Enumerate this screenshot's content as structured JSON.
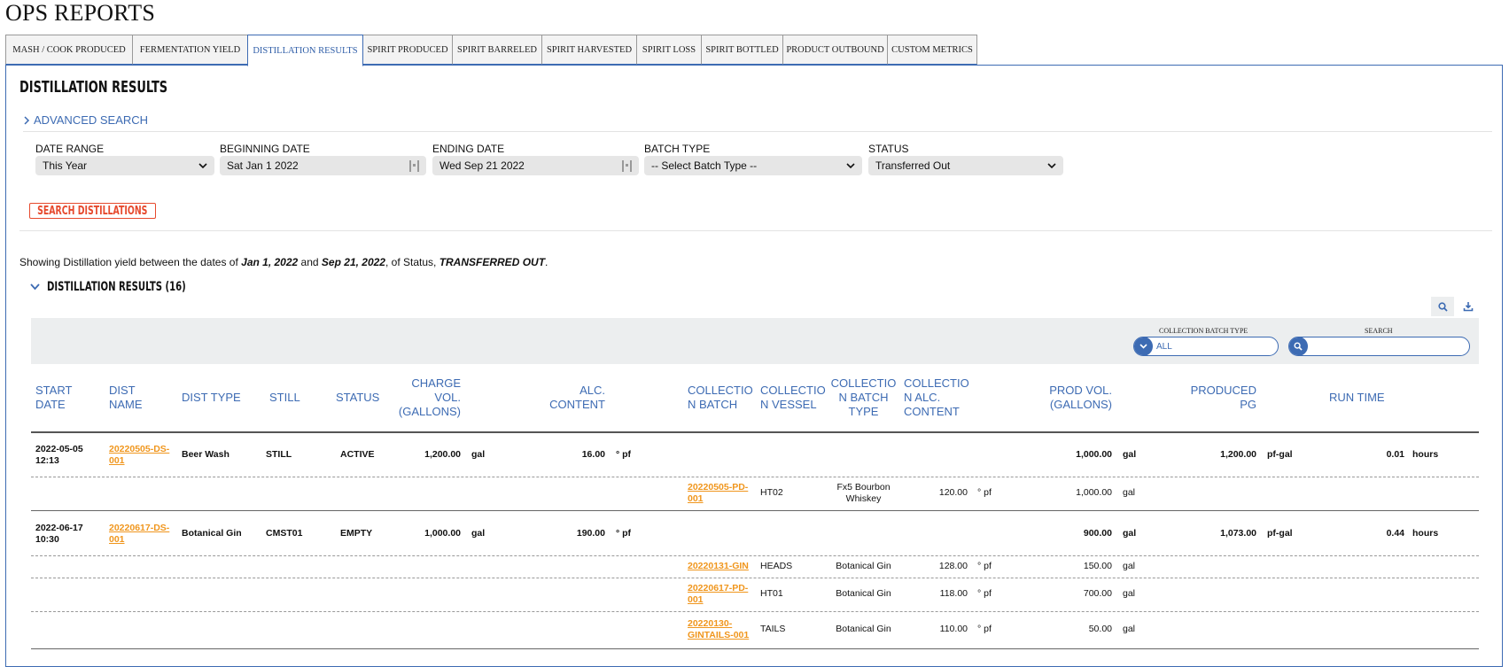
{
  "page_title": "OPS REPORTS",
  "tabs": [
    {
      "label": "MASH / COOK PRODUCED",
      "active": false
    },
    {
      "label": "FERMENTATION YIELD",
      "active": false
    },
    {
      "label": "DISTILLATION RESULTS",
      "active": true
    },
    {
      "label": "SPIRIT PRODUCED",
      "active": false
    },
    {
      "label": "SPIRIT BARRELED",
      "active": false
    },
    {
      "label": "SPIRIT HARVESTED",
      "active": false
    },
    {
      "label": "SPIRIT LOSS",
      "active": false
    },
    {
      "label": "SPIRIT BOTTLED",
      "active": false
    },
    {
      "label": "PRODUCT OUTBOUND",
      "active": false
    },
    {
      "label": "CUSTOM METRICS",
      "active": false
    }
  ],
  "section_title": "DISTILLATION RESULTS",
  "advanced_search": "ADVANCED SEARCH",
  "filters": {
    "date_range": {
      "label": "DATE RANGE",
      "value": "This Year"
    },
    "beginning_date": {
      "label": "BEGINNING DATE",
      "value": "Sat Jan 1 2022"
    },
    "ending_date": {
      "label": "ENDING DATE",
      "value": "Wed Sep 21 2022"
    },
    "batch_type": {
      "label": "BATCH TYPE",
      "value": "-- Select Batch Type --"
    },
    "status": {
      "label": "STATUS",
      "value": "Transferred Out"
    }
  },
  "search_button": "SEARCH DISTILLATIONS",
  "summary": {
    "prefix": "Showing Distillation yield between the dates of ",
    "start": "Jan 1, 2022",
    "and": " and ",
    "end": "Sep 21, 2022",
    "mid": ", of Status, ",
    "status": "TRANSFERRED OUT",
    "suffix": "."
  },
  "results_title": "DISTILLATION RESULTS (16)",
  "table_filters": {
    "collection_batch_type_label": "COLLECTION BATCH TYPE",
    "collection_batch_type_value": "ALL",
    "search_label": "SEARCH",
    "search_value": ""
  },
  "columns": {
    "start_date": [
      "START",
      "DATE"
    ],
    "dist_name": [
      "DIST",
      "NAME"
    ],
    "dist_type": [
      "DIST TYPE"
    ],
    "still": [
      "STILL"
    ],
    "status": [
      "STATUS"
    ],
    "charge_vol": [
      "CHARGE",
      "VOL.",
      "(GALLONS)"
    ],
    "alc_content": [
      "ALC.",
      "CONTENT"
    ],
    "collection_batch": [
      "COLLECTIO",
      "N BATCH"
    ],
    "collection_vessel": [
      "COLLECTIO",
      "N VESSEL"
    ],
    "collection_batch_type": [
      "COLLECTIO",
      "N BATCH",
      "TYPE"
    ],
    "collection_alc": [
      "COLLECTIO",
      "N ALC.",
      "CONTENT"
    ],
    "prod_vol": [
      "PROD VOL.",
      "(GALLONS)"
    ],
    "produced_pg": [
      "PRODUCED",
      "PG"
    ],
    "run_time": [
      "RUN TIME"
    ]
  },
  "rows": [
    {
      "start_date": [
        "2022-05-05",
        "12:13"
      ],
      "dist_name": [
        "20220505-DS-",
        "001"
      ],
      "dist_type": "Beer Wash",
      "still": "STILL",
      "status": "ACTIVE",
      "charge_vol": "1,200.00",
      "charge_unit": "gal",
      "alc": "16.00",
      "alc_unit": "° pf",
      "prod_vol": "1,000.00",
      "prod_unit": "gal",
      "pg": "1,200.00",
      "pg_unit": "pf-gal",
      "run_time": "0.01",
      "run_unit": "hours",
      "collections": [
        {
          "batch": [
            "20220505-PD-",
            "001"
          ],
          "vessel": "HT02",
          "type": [
            "Fx5 Bourbon",
            "Whiskey"
          ],
          "alc": "120.00",
          "alc_unit": "° pf",
          "vol": "1,000.00",
          "vol_unit": "gal"
        }
      ]
    },
    {
      "start_date": [
        "2022-06-17",
        "10:30"
      ],
      "dist_name": [
        "20220617-DS-",
        "001"
      ],
      "dist_type": "Botanical Gin",
      "still": "CMST01",
      "status": "EMPTY",
      "charge_vol": "1,000.00",
      "charge_unit": "gal",
      "alc": "190.00",
      "alc_unit": "° pf",
      "prod_vol": "900.00",
      "prod_unit": "gal",
      "pg": "1,073.00",
      "pg_unit": "pf-gal",
      "run_time": "0.44",
      "run_unit": "hours",
      "collections": [
        {
          "batch": [
            "20220131-GIN"
          ],
          "vessel": "HEADS",
          "type": [
            "Botanical Gin"
          ],
          "alc": "128.00",
          "alc_unit": "° pf",
          "vol": "150.00",
          "vol_unit": "gal"
        },
        {
          "batch": [
            "20220617-PD-",
            "001"
          ],
          "vessel": "HT01",
          "type": [
            "Botanical Gin"
          ],
          "alc": "118.00",
          "alc_unit": "° pf",
          "vol": "700.00",
          "vol_unit": "gal"
        },
        {
          "batch": [
            "20220130-",
            "GINTAILS-001"
          ],
          "vessel": "TAILS",
          "type": [
            "Botanical Gin"
          ],
          "alc": "110.00",
          "alc_unit": "° pf",
          "vol": "50.00",
          "vol_unit": "gal"
        }
      ]
    }
  ]
}
